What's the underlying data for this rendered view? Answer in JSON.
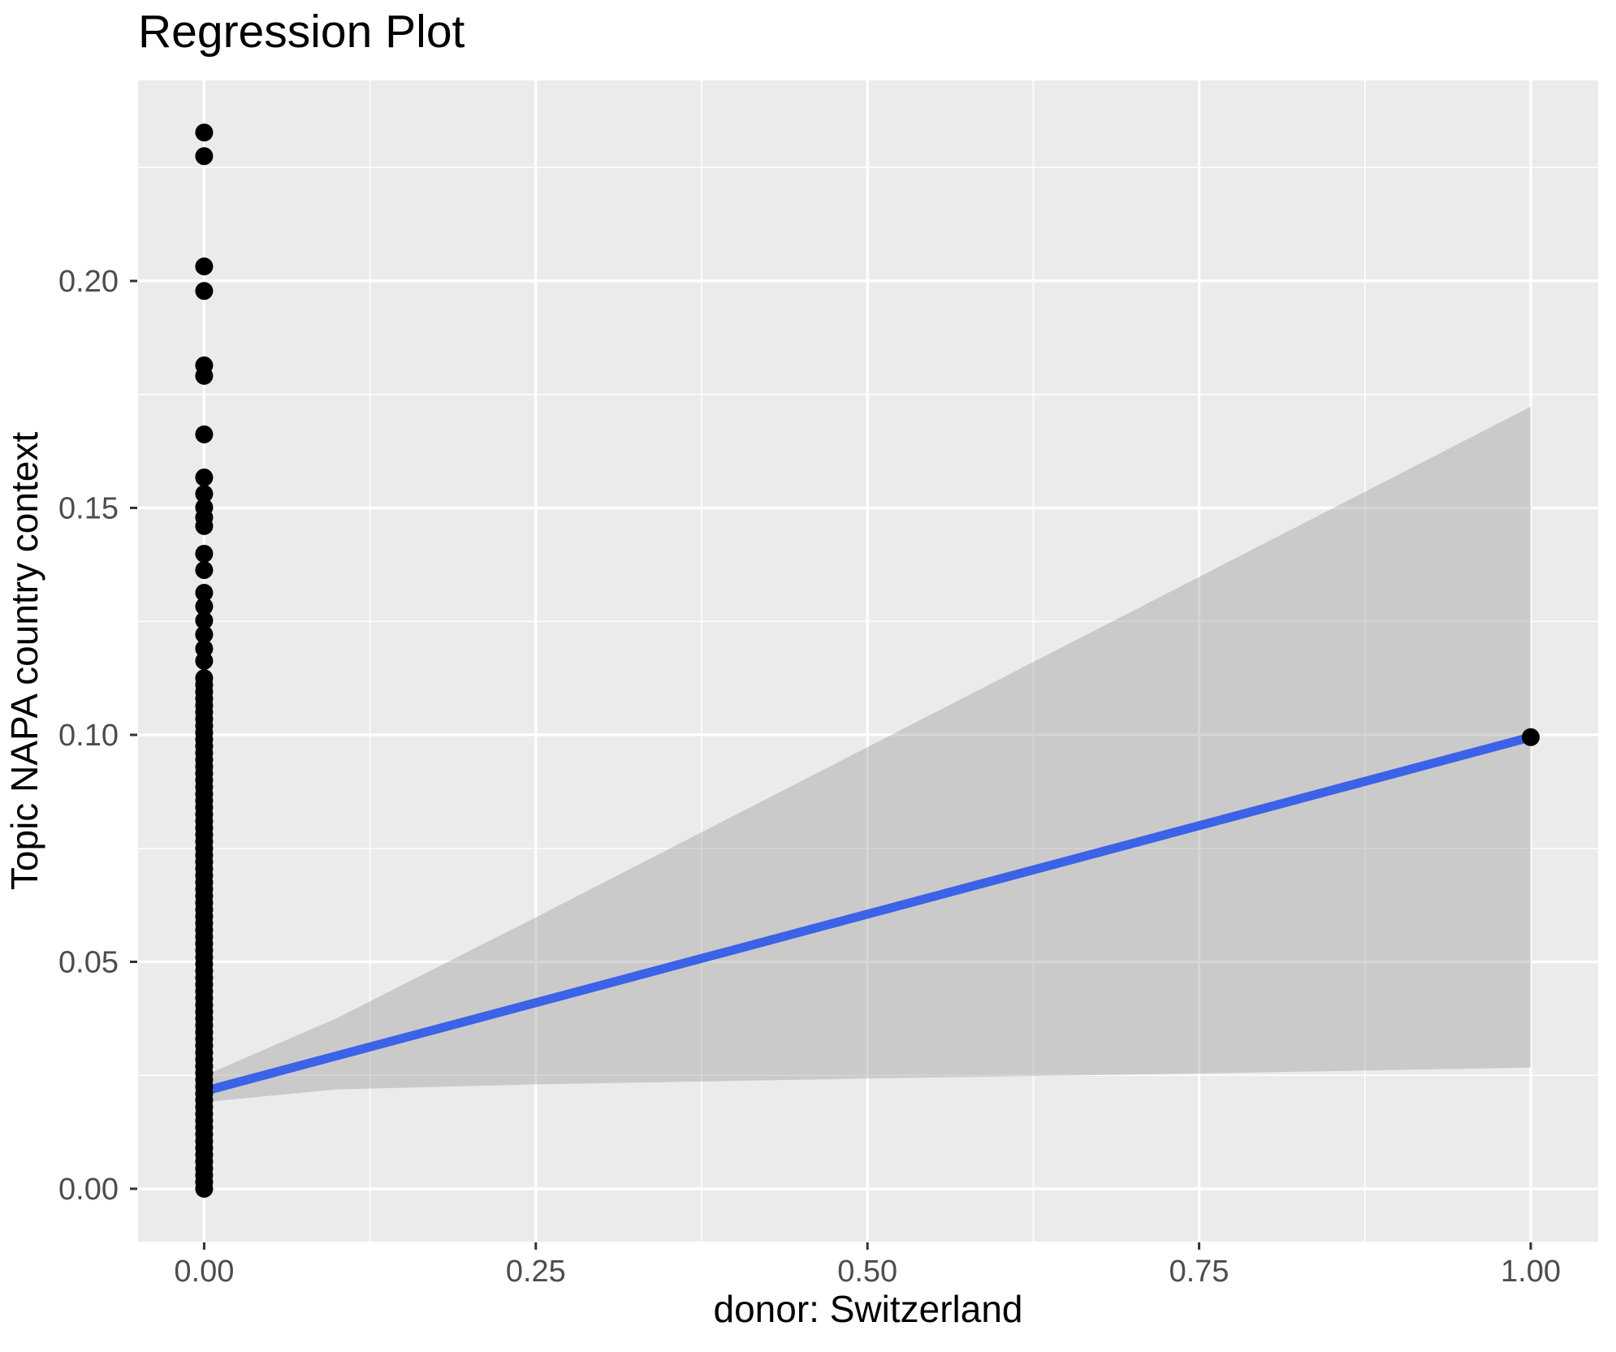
{
  "title": "Regression Plot",
  "colors": {
    "panel_background": "#EBEBEB",
    "gridline": "#FFFFFF",
    "ribbon_fill": "#999999",
    "ribbon_opacity": 0.4,
    "regression_line": "#3B62E7",
    "point": "#000000",
    "tick_mark": "#333333",
    "tick_label": "#4D4D4D",
    "title_text": "#000000",
    "axis_title_text": "#000000",
    "outer_background": "#FFFFFF"
  },
  "chart_data": {
    "type": "scatter",
    "title": "Regression Plot",
    "xlabel": "donor: Switzerland",
    "ylabel": "Topic NAPA country context",
    "legend": "none",
    "grid": "white major and minor gridlines on gray panel",
    "xlim": [
      -0.05,
      1.05
    ],
    "ylim": [
      -0.0116,
      0.2442
    ],
    "x_ticks": {
      "values": [
        0,
        0.25,
        0.5,
        0.75,
        1
      ],
      "labels": [
        "0.00",
        "0.25",
        "0.50",
        "0.75",
        "1.00"
      ]
    },
    "y_ticks": {
      "values": [
        0,
        0.05,
        0.1,
        0.15,
        0.2
      ],
      "labels": [
        "0.00",
        "0.05",
        "0.10",
        "0.15",
        "0.20"
      ]
    },
    "x_minor_gridlines": [
      0.125,
      0.375,
      0.625,
      0.875
    ],
    "y_minor_gridlines": [
      0.025,
      0.075,
      0.125,
      0.175,
      0.225
    ],
    "points": {
      "x0_discrete_y": [
        0.2327,
        0.2275,
        0.2032,
        0.1978,
        0.1814,
        0.1791,
        0.1662,
        0.1567,
        0.1531,
        0.1501,
        0.1479,
        0.146,
        0.1399,
        0.1363,
        0.1313,
        0.1283,
        0.1252,
        0.1221,
        0.119,
        0.1163
      ],
      "x0_overplotted_column": {
        "x": 0,
        "y_min": 0.0,
        "y_max": 0.1125,
        "approx_step": 0.0015
      },
      "x1_point": {
        "x": 1,
        "y": 0.0995
      }
    },
    "regression_line": {
      "x": [
        0,
        1
      ],
      "y": [
        0.0215,
        0.0995
      ]
    },
    "ci_ribbon": {
      "x": [
        0,
        0.1,
        0.25,
        0.5,
        0.75,
        1
      ],
      "upper": [
        0.0249,
        0.0376,
        0.0598,
        0.0973,
        0.1348,
        0.1723
      ],
      "lower": [
        0.0191,
        0.0219,
        0.023,
        0.0243,
        0.0254,
        0.0267
      ]
    }
  }
}
